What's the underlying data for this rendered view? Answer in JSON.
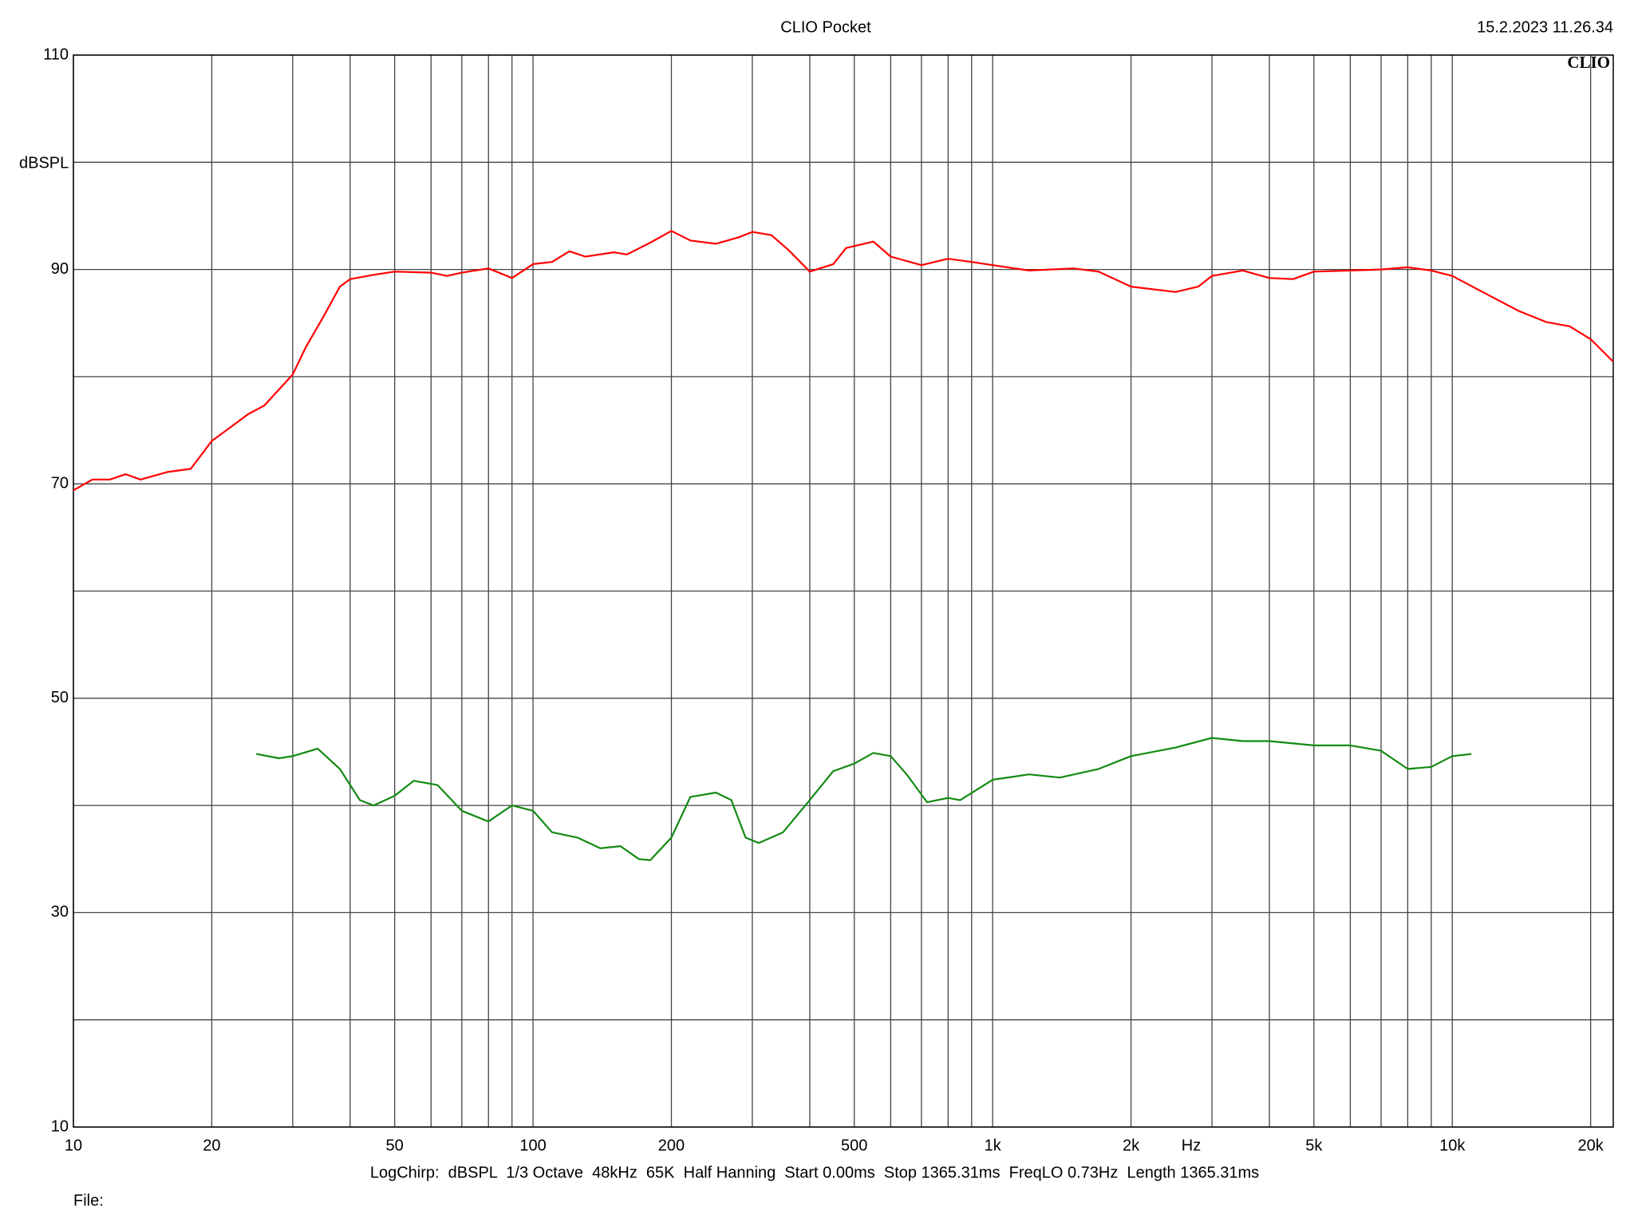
{
  "chart_data": {
    "type": "line",
    "title": "CLIO Pocket",
    "timestamp": "15.2.2023 11.26.34",
    "logo": "CLIO",
    "y_label": "dBSPL",
    "x_label": "Hz",
    "footer": "LogChirp:  dBSPL  1/3 Octave  48kHz  65K  Half Hanning  Start 0.00ms  Stop 1365.31ms  FreqLO 0.73Hz  Length 1365.31ms",
    "file_label": "File:",
    "x_log": true,
    "grid": true,
    "xlim": [
      10,
      22400
    ],
    "ylim": [
      10,
      110
    ],
    "xticks": [
      10,
      20,
      50,
      100,
      200,
      500,
      {
        "value": 1000,
        "label": "1k"
      },
      {
        "value": 2000,
        "label": "2k"
      },
      {
        "value": 5000,
        "label": "5k"
      },
      {
        "value": 10000,
        "label": "10k"
      },
      {
        "value": 20000,
        "label": "20k"
      }
    ],
    "x_minor_grid": [
      30,
      40,
      60,
      70,
      80,
      90,
      300,
      400,
      600,
      700,
      800,
      900,
      3000,
      4000,
      6000,
      7000,
      8000,
      9000
    ],
    "yticks": [
      10,
      30,
      50,
      70,
      90,
      110
    ],
    "y_minor_grid": [
      20,
      40,
      60,
      80,
      100
    ],
    "series": [
      {
        "color": "#ff0000",
        "x": [
          10,
          11,
          12,
          13,
          14,
          16,
          18,
          20,
          22,
          24,
          26,
          28,
          30,
          32,
          35,
          38,
          40,
          45,
          50,
          60,
          65,
          70,
          80,
          90,
          100,
          110,
          120,
          130,
          150,
          160,
          180,
          200,
          220,
          250,
          280,
          300,
          330,
          360,
          400,
          450,
          480,
          550,
          600,
          700,
          800,
          900,
          1000,
          1200,
          1500,
          1700,
          2000,
          2500,
          2800,
          3000,
          3500,
          4000,
          4500,
          5000,
          6000,
          7000,
          8000,
          9000,
          10000,
          12000,
          14000,
          16000,
          18000,
          20000,
          22400
        ],
        "values": [
          69.4,
          70.4,
          70.4,
          70.9,
          70.4,
          71.1,
          71.4,
          74,
          75.3,
          76.5,
          77.3,
          78.8,
          80.2,
          82.7,
          85.6,
          88.4,
          89.1,
          89.5,
          89.8,
          89.7,
          89.4,
          89.7,
          90.1,
          89.2,
          90.5,
          90.7,
          91.7,
          91.2,
          91.6,
          91.4,
          92.5,
          93.6,
          92.7,
          92.4,
          93,
          93.5,
          93.2,
          91.8,
          89.8,
          90.5,
          92,
          92.6,
          91.2,
          90.4,
          91,
          90.7,
          90.4,
          89.9,
          90.1,
          89.8,
          88.4,
          87.9,
          88.4,
          89.4,
          89.9,
          89.2,
          89.1,
          89.8,
          89.9,
          90,
          90.2,
          89.9,
          89.4,
          87.6,
          86.1,
          85.1,
          84.7,
          83.5,
          81.4
        ]
      },
      {
        "color": "#138a13",
        "x": [
          25,
          28,
          30,
          34,
          38,
          42,
          45,
          50,
          55,
          62,
          70,
          80,
          90,
          100,
          110,
          125,
          140,
          155,
          170,
          180,
          200,
          220,
          250,
          270,
          290,
          310,
          350,
          400,
          450,
          500,
          550,
          600,
          650,
          720,
          800,
          850,
          1000,
          1200,
          1400,
          1700,
          2000,
          2500,
          3000,
          3500,
          4000,
          5000,
          6000,
          7000,
          8000,
          9000,
          10000,
          11000
        ],
        "values": [
          44.8,
          44.4,
          44.6,
          45.3,
          43.4,
          40.5,
          40,
          40.9,
          42.3,
          41.9,
          39.5,
          38.5,
          40,
          39.5,
          37.5,
          37,
          36,
          36.2,
          35,
          34.9,
          37,
          40.8,
          41.2,
          40.5,
          37,
          36.5,
          37.5,
          40.5,
          43.2,
          43.9,
          44.9,
          44.6,
          42.9,
          40.3,
          40.7,
          40.5,
          42.4,
          42.9,
          42.6,
          43.4,
          44.6,
          45.4,
          46.3,
          46,
          46,
          45.6,
          45.6,
          45.1,
          43.4,
          43.6,
          44.6,
          44.8
        ]
      }
    ]
  }
}
